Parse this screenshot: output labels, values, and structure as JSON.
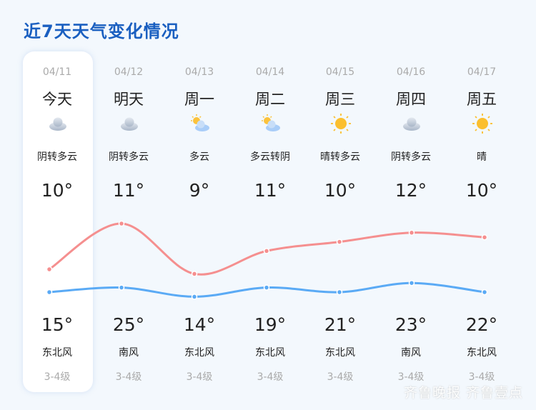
{
  "title": "近7天天气变化情况",
  "days": [
    {
      "date": "04/11",
      "day": "今天",
      "icon": "cloudy-icon",
      "cond": "阴转多云",
      "low": "10°",
      "high": "15°",
      "wind": "东北风",
      "level": "3-4级"
    },
    {
      "date": "04/12",
      "day": "明天",
      "icon": "cloudy-icon",
      "cond": "阴转多云",
      "low": "11°",
      "high": "25°",
      "wind": "南风",
      "level": "3-4级"
    },
    {
      "date": "04/13",
      "day": "周一",
      "icon": "partly-cloudy-icon",
      "cond": "多云",
      "low": "9°",
      "high": "14°",
      "wind": "东北风",
      "level": "3-4级"
    },
    {
      "date": "04/14",
      "day": "周二",
      "icon": "partly-cloudy-icon",
      "cond": "多云转阴",
      "low": "11°",
      "high": "19°",
      "wind": "东北风",
      "level": "3-4级"
    },
    {
      "date": "04/15",
      "day": "周三",
      "icon": "sunny-icon",
      "cond": "晴转多云",
      "low": "10°",
      "high": "21°",
      "wind": "东北风",
      "level": "3-4级"
    },
    {
      "date": "04/16",
      "day": "周四",
      "icon": "cloudy-icon",
      "cond": "阴转多云",
      "low": "12°",
      "high": "23°",
      "wind": "南风",
      "level": "3-4级"
    },
    {
      "date": "04/17",
      "day": "周五",
      "icon": "sunny-icon",
      "cond": "晴",
      "low": "10°",
      "high": "22°",
      "wind": "东北风",
      "level": "3-4级"
    }
  ],
  "chart_data": {
    "type": "line",
    "categories": [
      "04/11",
      "04/12",
      "04/13",
      "04/14",
      "04/15",
      "04/16",
      "04/17"
    ],
    "series": [
      {
        "values": [
          15,
          25,
          14,
          19,
          21,
          23,
          22
        ],
        "color": "#f58f8f"
      },
      {
        "values": [
          10,
          11,
          9,
          11,
          10,
          12,
          10
        ],
        "color": "#5aaaf5"
      }
    ]
  },
  "watermark": "齐鲁晚报 齐鲁壹点"
}
